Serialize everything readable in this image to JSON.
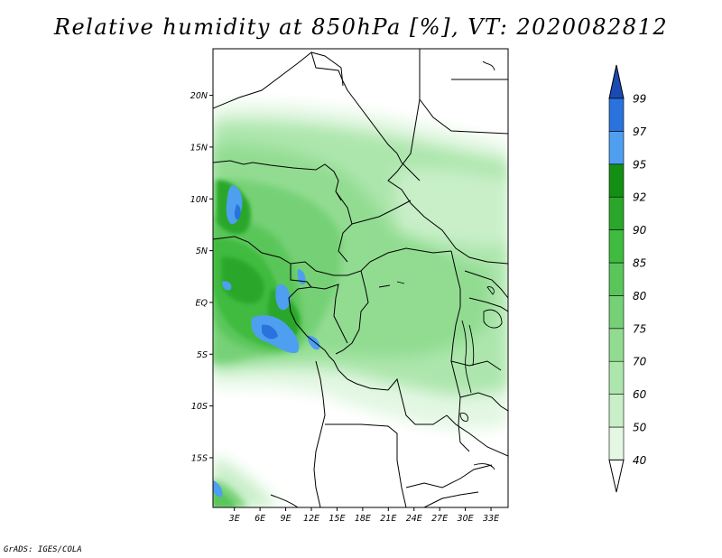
{
  "title": "Relative humidity at 850hPa [%], VT: 2020082812",
  "credit": "GrADS: IGES/COLA",
  "map": {
    "lat_labels": [
      {
        "lat": 20,
        "label": "20N"
      },
      {
        "lat": 15,
        "label": "15N"
      },
      {
        "lat": 10,
        "label": "10N"
      },
      {
        "lat": 5,
        "label": "5N"
      },
      {
        "lat": 0,
        "label": "EQ"
      },
      {
        "lat": -5,
        "label": "5S"
      },
      {
        "lat": -10,
        "label": "10S"
      },
      {
        "lat": -15,
        "label": "15S"
      }
    ],
    "lon_labels": [
      {
        "lon": 3,
        "label": "3E"
      },
      {
        "lon": 6,
        "label": "6E"
      },
      {
        "lon": 9,
        "label": "9E"
      },
      {
        "lon": 12,
        "label": "12E"
      },
      {
        "lon": 15,
        "label": "15E"
      },
      {
        "lon": 18,
        "label": "18E"
      },
      {
        "lon": 21,
        "label": "21E"
      },
      {
        "lon": 24,
        "label": "24E"
      },
      {
        "lon": 27,
        "label": "27E"
      },
      {
        "lon": 30,
        "label": "30E"
      },
      {
        "lon": 33,
        "label": "33E"
      }
    ],
    "lon_range": [
      0.5,
      35
    ],
    "lat_range": [
      -19.8,
      24.5
    ]
  },
  "colorbar": {
    "levels": [
      "40",
      "50",
      "60",
      "70",
      "75",
      "80",
      "85",
      "90",
      "92",
      "95",
      "97",
      "99"
    ],
    "colors": [
      "#ffffff",
      "#e3f7e3",
      "#c9efc9",
      "#ade6ad",
      "#92dc92",
      "#76d176",
      "#5ac65a",
      "#3fbb3f",
      "#2aa72a",
      "#138f13",
      "#4f9ff0",
      "#2a73dc",
      "#1a4ab4"
    ]
  }
}
